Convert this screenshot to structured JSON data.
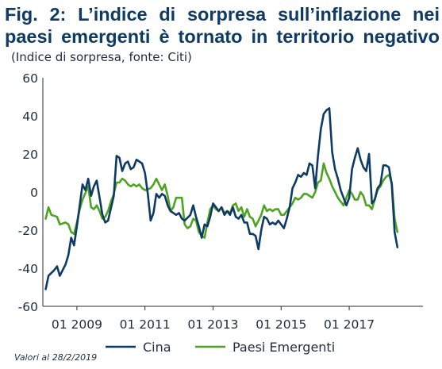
{
  "header": {
    "title_line1": "Fig. 2: L’indice di sorpresa sull’inflazione nei",
    "title_line2": "paesi emergenti è tornato in territorio negativo",
    "subtitle": "(Indice di sorpresa, fonte: Citi)"
  },
  "footnote": "Valori al 28/2/2019",
  "colors": {
    "cina": "#0e3a66",
    "emergenti": "#4ca521",
    "axis": "#1f2d3d"
  },
  "chart_data": {
    "type": "line",
    "title": "Fig. 2: L’indice di sorpresa sull’inflazione nei paesi emergenti è tornato in territorio negativo",
    "subtitle": "(Indice di sorpresa, fonte: Citi)",
    "ylim": [
      -60,
      60
    ],
    "yticks": [
      60,
      40,
      20,
      0,
      -20,
      -40,
      -60
    ],
    "ytick_labels": [
      "60",
      "40",
      "20",
      "0",
      "-20",
      "-40",
      "-60"
    ],
    "xlim": [
      "2008-01",
      "2019-03"
    ],
    "xticks": [
      "2009-01",
      "2011-01",
      "2013-01",
      "2015-01",
      "2017-01"
    ],
    "xtick_labels": [
      "01 2009",
      "01 2011",
      "01 2013",
      "01 2015",
      "01 2017"
    ],
    "grid": false,
    "legend": "bottom",
    "series": [
      {
        "name": "Cina",
        "color": "#0e3a66",
        "points": [
          [
            "2008-02",
            -51
          ],
          [
            "2008-03",
            -44
          ],
          [
            "2008-05",
            -41
          ],
          [
            "2008-06",
            -39
          ],
          [
            "2008-07",
            -44
          ],
          [
            "2008-09",
            -38
          ],
          [
            "2008-10",
            -33
          ],
          [
            "2008-11",
            -24
          ],
          [
            "2008-12",
            -28
          ],
          [
            "2009-01",
            -18
          ],
          [
            "2009-03",
            4
          ],
          [
            "2009-04",
            1
          ],
          [
            "2009-05",
            7
          ],
          [
            "2009-06",
            -2
          ],
          [
            "2009-07",
            3
          ],
          [
            "2009-08",
            6
          ],
          [
            "2009-10",
            -12
          ],
          [
            "2009-11",
            -16
          ],
          [
            "2009-12",
            -15
          ],
          [
            "2010-02",
            -2
          ],
          [
            "2010-03",
            19
          ],
          [
            "2010-04",
            18
          ],
          [
            "2010-05",
            11
          ],
          [
            "2010-06",
            15
          ],
          [
            "2010-07",
            16
          ],
          [
            "2010-08",
            12
          ],
          [
            "2010-09",
            13
          ],
          [
            "2010-10",
            17
          ],
          [
            "2010-12",
            15
          ],
          [
            "2011-01",
            10
          ],
          [
            "2011-02",
            -1
          ],
          [
            "2011-03",
            -15
          ],
          [
            "2011-04",
            -11
          ],
          [
            "2011-05",
            -1
          ],
          [
            "2011-06",
            -3
          ],
          [
            "2011-07",
            -1
          ],
          [
            "2011-08",
            -2
          ],
          [
            "2011-09",
            -7
          ],
          [
            "2011-10",
            -10
          ],
          [
            "2011-12",
            -12
          ],
          [
            "2012-01",
            -11
          ],
          [
            "2012-02",
            -14
          ],
          [
            "2012-03",
            -15
          ],
          [
            "2012-05",
            -12
          ],
          [
            "2012-06",
            -7
          ],
          [
            "2012-07",
            -13
          ],
          [
            "2012-08",
            -18
          ],
          [
            "2012-09",
            -24
          ],
          [
            "2012-10",
            -17
          ],
          [
            "2012-11",
            -18
          ],
          [
            "2012-12",
            -13
          ],
          [
            "2013-01",
            -6
          ],
          [
            "2013-02",
            -8
          ],
          [
            "2013-03",
            -10
          ],
          [
            "2013-04",
            -8
          ],
          [
            "2013-05",
            -12
          ],
          [
            "2013-06",
            -10
          ],
          [
            "2013-07",
            -12
          ],
          [
            "2013-08",
            -8
          ],
          [
            "2013-09",
            -13
          ],
          [
            "2013-10",
            -14
          ],
          [
            "2013-11",
            -12
          ],
          [
            "2013-12",
            -16
          ],
          [
            "2014-01",
            -16
          ],
          [
            "2014-02",
            -22
          ],
          [
            "2014-03",
            -22
          ],
          [
            "2014-04",
            -23
          ],
          [
            "2014-05",
            -30
          ],
          [
            "2014-06",
            -20
          ],
          [
            "2014-07",
            -13
          ],
          [
            "2014-08",
            -14
          ],
          [
            "2014-09",
            -17
          ],
          [
            "2014-10",
            -16
          ],
          [
            "2014-11",
            -17
          ],
          [
            "2014-12",
            -15
          ],
          [
            "2015-02",
            -19
          ],
          [
            "2015-03",
            -14
          ],
          [
            "2015-04",
            -8
          ],
          [
            "2015-05",
            2
          ],
          [
            "2015-06",
            5
          ],
          [
            "2015-07",
            9
          ],
          [
            "2015-08",
            8
          ],
          [
            "2015-09",
            10
          ],
          [
            "2015-10",
            9
          ],
          [
            "2015-11",
            15
          ],
          [
            "2015-12",
            14
          ],
          [
            "2016-01",
            2
          ],
          [
            "2016-02",
            19
          ],
          [
            "2016-03",
            33
          ],
          [
            "2016-04",
            41
          ],
          [
            "2016-05",
            43
          ],
          [
            "2016-06",
            44
          ],
          [
            "2016-07",
            21
          ],
          [
            "2016-08",
            12
          ],
          [
            "2016-09",
            7
          ],
          [
            "2016-10",
            1
          ],
          [
            "2016-11",
            -3
          ],
          [
            "2016-12",
            -7
          ],
          [
            "2017-01",
            -3
          ],
          [
            "2017-02",
            12
          ],
          [
            "2017-03",
            18
          ],
          [
            "2017-04",
            23
          ],
          [
            "2017-05",
            17
          ],
          [
            "2017-06",
            13
          ],
          [
            "2017-07",
            11
          ],
          [
            "2017-08",
            20
          ],
          [
            "2017-09",
            -6
          ],
          [
            "2017-10",
            -4
          ],
          [
            "2017-11",
            2
          ],
          [
            "2017-12",
            4
          ],
          [
            "2018-01",
            14
          ],
          [
            "2018-02",
            14
          ],
          [
            "2018-03",
            13
          ],
          [
            "2018-04",
            4
          ],
          [
            "2018-05",
            -21
          ],
          [
            "2018-06",
            -29
          ]
        ]
      },
      {
        "name": "Paesi Emergenti",
        "color": "#4ca521",
        "points": [
          [
            "2008-02",
            -14
          ],
          [
            "2008-03",
            -8
          ],
          [
            "2008-04",
            -12
          ],
          [
            "2008-06",
            -13
          ],
          [
            "2008-07",
            -17
          ],
          [
            "2008-09",
            -16
          ],
          [
            "2008-10",
            -17
          ],
          [
            "2008-11",
            -21
          ],
          [
            "2008-12",
            -22
          ],
          [
            "2009-01",
            -16
          ],
          [
            "2009-02",
            -9
          ],
          [
            "2009-03",
            -4
          ],
          [
            "2009-05",
            3
          ],
          [
            "2009-06",
            -8
          ],
          [
            "2009-07",
            -9
          ],
          [
            "2009-08",
            -7
          ],
          [
            "2009-09",
            -10
          ],
          [
            "2009-10",
            -14
          ],
          [
            "2009-11",
            -13
          ],
          [
            "2009-12",
            -10
          ],
          [
            "2010-01",
            -5
          ],
          [
            "2010-02",
            -1
          ],
          [
            "2010-03",
            5
          ],
          [
            "2010-04",
            5
          ],
          [
            "2010-05",
            7
          ],
          [
            "2010-06",
            6
          ],
          [
            "2010-07",
            4
          ],
          [
            "2010-08",
            3
          ],
          [
            "2010-09",
            4
          ],
          [
            "2010-10",
            3
          ],
          [
            "2010-11",
            4
          ],
          [
            "2010-12",
            2
          ],
          [
            "2011-01",
            1
          ],
          [
            "2011-03",
            2
          ],
          [
            "2011-04",
            4
          ],
          [
            "2011-05",
            7
          ],
          [
            "2011-06",
            4
          ],
          [
            "2011-07",
            1
          ],
          [
            "2011-08",
            4
          ],
          [
            "2011-09",
            -2
          ],
          [
            "2011-10",
            -10
          ],
          [
            "2011-11",
            -8
          ],
          [
            "2011-12",
            -3
          ],
          [
            "2012-02",
            -3
          ],
          [
            "2012-03",
            -17
          ],
          [
            "2012-04",
            -19
          ],
          [
            "2012-05",
            -18
          ],
          [
            "2012-06",
            -14
          ],
          [
            "2012-07",
            -15
          ],
          [
            "2012-08",
            -21
          ],
          [
            "2012-09",
            -23
          ],
          [
            "2012-10",
            -24
          ],
          [
            "2012-11",
            -16
          ],
          [
            "2012-12",
            -9
          ],
          [
            "2013-01",
            -7
          ],
          [
            "2013-02",
            -9
          ],
          [
            "2013-03",
            -10
          ],
          [
            "2013-04",
            -8
          ],
          [
            "2013-05",
            -11
          ],
          [
            "2013-06",
            -10
          ],
          [
            "2013-07",
            -11
          ],
          [
            "2013-08",
            -7
          ],
          [
            "2013-09",
            -6
          ],
          [
            "2013-10",
            -10
          ],
          [
            "2013-11",
            -8
          ],
          [
            "2013-12",
            -13
          ],
          [
            "2014-01",
            -9
          ],
          [
            "2014-02",
            -13
          ],
          [
            "2014-03",
            -14
          ],
          [
            "2014-04",
            -18
          ],
          [
            "2014-05",
            -15
          ],
          [
            "2014-06",
            -12
          ],
          [
            "2014-07",
            -7
          ],
          [
            "2014-08",
            -10
          ],
          [
            "2014-09",
            -9
          ],
          [
            "2014-10",
            -10
          ],
          [
            "2014-11",
            -9
          ],
          [
            "2014-12",
            -9
          ],
          [
            "2015-01",
            -12
          ],
          [
            "2015-02",
            -12
          ],
          [
            "2015-03",
            -10
          ],
          [
            "2015-04",
            -8
          ],
          [
            "2015-05",
            -6
          ],
          [
            "2015-06",
            -3
          ],
          [
            "2015-07",
            -4
          ],
          [
            "2015-08",
            -3
          ],
          [
            "2015-09",
            -1
          ],
          [
            "2015-10",
            -1
          ],
          [
            "2015-11",
            -2
          ],
          [
            "2015-12",
            -3
          ],
          [
            "2016-01",
            0
          ],
          [
            "2016-02",
            5
          ],
          [
            "2016-03",
            6
          ],
          [
            "2016-04",
            15
          ],
          [
            "2016-05",
            10
          ],
          [
            "2016-06",
            7
          ],
          [
            "2016-07",
            3
          ],
          [
            "2016-08",
            0
          ],
          [
            "2016-09",
            -3
          ],
          [
            "2016-10",
            -5
          ],
          [
            "2016-11",
            -7
          ],
          [
            "2016-12",
            -3
          ],
          [
            "2017-01",
            1
          ],
          [
            "2017-02",
            -1
          ],
          [
            "2017-03",
            -4
          ],
          [
            "2017-04",
            -4
          ],
          [
            "2017-05",
            0
          ],
          [
            "2017-06",
            -2
          ],
          [
            "2017-07",
            -7
          ],
          [
            "2017-08",
            -7
          ],
          [
            "2017-09",
            -9
          ],
          [
            "2017-10",
            -4
          ],
          [
            "2017-11",
            1
          ],
          [
            "2017-12",
            3
          ],
          [
            "2018-01",
            6
          ],
          [
            "2018-02",
            8
          ],
          [
            "2018-03",
            9
          ],
          [
            "2018-04",
            5
          ],
          [
            "2018-05",
            -14
          ],
          [
            "2018-06",
            -21
          ]
        ]
      }
    ]
  }
}
